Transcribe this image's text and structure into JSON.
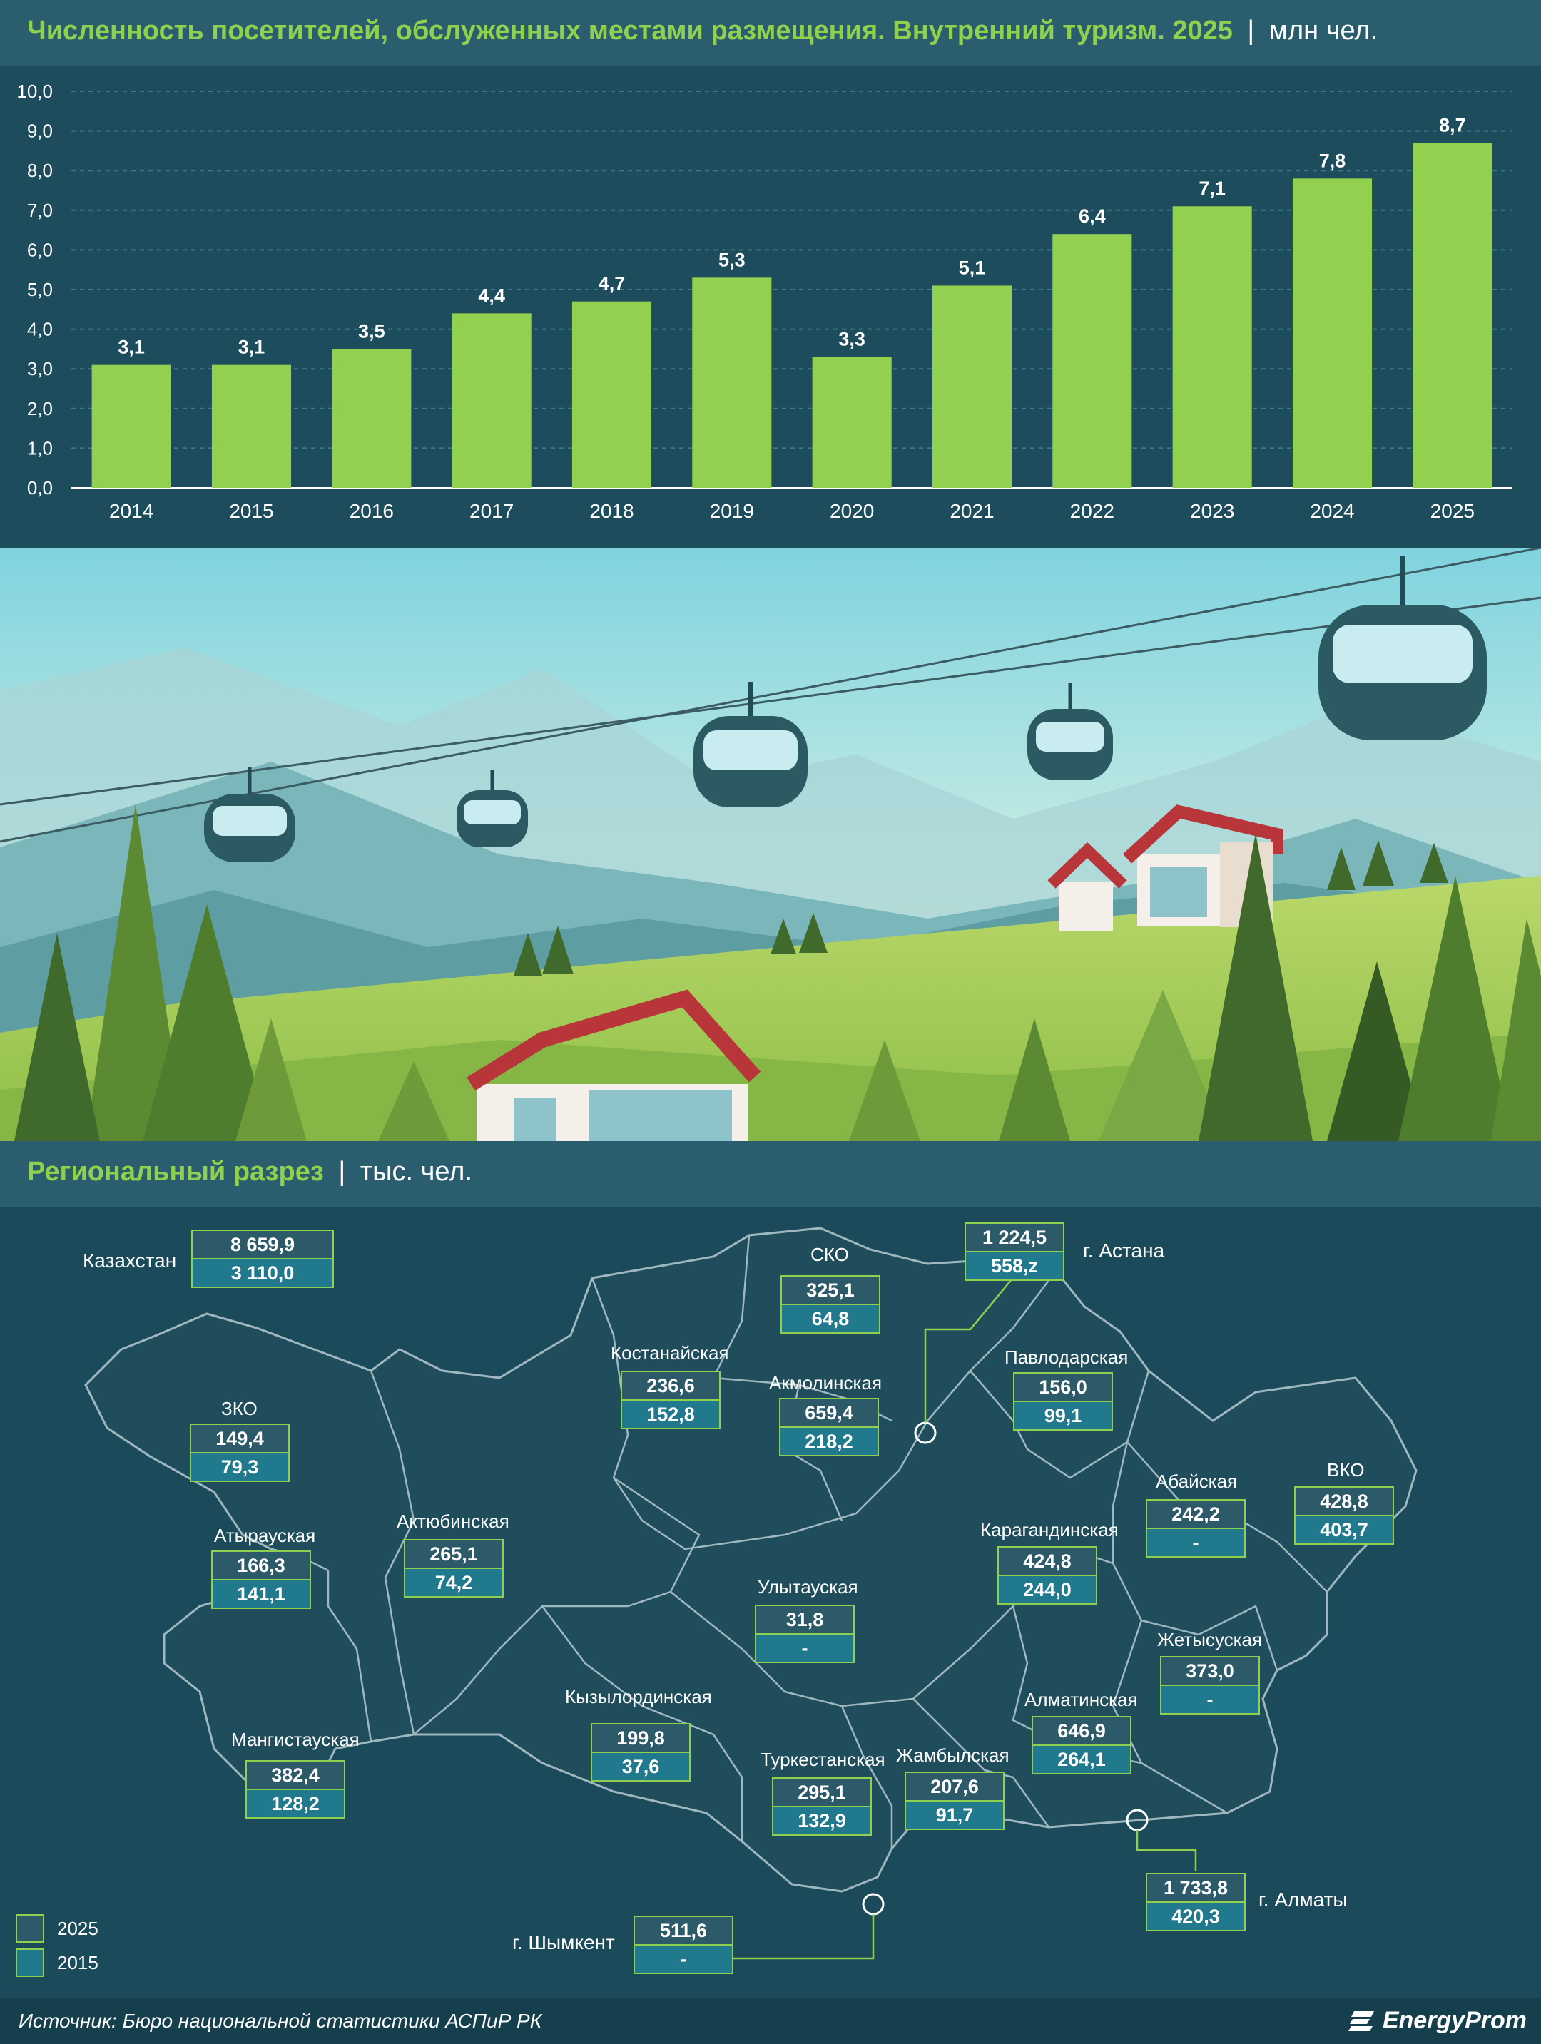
{
  "header": {
    "title": "Численность посетителей, обслуженных местами размещения. Внутренний туризм. 2025",
    "separator": "|",
    "unit": "млн чел."
  },
  "chart_data": {
    "type": "bar",
    "categories": [
      "2014",
      "2015",
      "2016",
      "2017",
      "2018",
      "2019",
      "2020",
      "2021",
      "2022",
      "2023",
      "2024",
      "2025"
    ],
    "values": [
      3.1,
      3.1,
      3.5,
      4.4,
      4.7,
      5.3,
      3.3,
      5.1,
      6.4,
      7.1,
      7.8,
      8.7
    ],
    "value_labels": [
      "3,1",
      "3,1",
      "3,5",
      "4,4",
      "4,7",
      "5,3",
      "3,3",
      "5,1",
      "6,4",
      "7,1",
      "7,8",
      "8,7"
    ],
    "yticks": [
      "0,0",
      "1,0",
      "2,0",
      "3,0",
      "4,0",
      "5,0",
      "6,0",
      "7,0",
      "8,0",
      "9,0",
      "10,0"
    ],
    "ylim": [
      0,
      10
    ],
    "grid": true,
    "bar_color": "#92d050"
  },
  "regional": {
    "title": "Региональный разрез",
    "separator": "|",
    "unit": "тыс. чел.",
    "legend": [
      {
        "label": "2025",
        "color": "#2c5a68"
      },
      {
        "label": "2015",
        "color": "#21798e"
      }
    ],
    "kazakhstan": {
      "name": "Казахстан",
      "v2025": "8 659,9",
      "v2015": "3 110,0"
    },
    "regions": {
      "sko": {
        "name": "СКО",
        "v2025": "325,1",
        "v2015": "64,8"
      },
      "astana": {
        "name": "г. Астана",
        "v2025": "1 224,5",
        "v2015": "558,z"
      },
      "kostanay": {
        "name": "Костанайская",
        "v2025": "236,6",
        "v2015": "152,8"
      },
      "akmola": {
        "name": "Акмолинская",
        "v2025": "659,4",
        "v2015": "218,2"
      },
      "pavlodar": {
        "name": "Павлодарская",
        "v2025": "156,0",
        "v2015": "99,1"
      },
      "zko": {
        "name": "ЗКО",
        "v2025": "149,4",
        "v2015": "79,3"
      },
      "abay": {
        "name": "Абайская",
        "v2025": "242,2",
        "v2015": "-"
      },
      "vko": {
        "name": "ВКО",
        "v2025": "428,8",
        "v2015": "403,7"
      },
      "atyrau": {
        "name": "Атырауская",
        "v2025": "166,3",
        "v2015": "141,1"
      },
      "aktobe": {
        "name": "Актюбинская",
        "v2025": "265,1",
        "v2015": "74,2"
      },
      "karaganda": {
        "name": "Карагандинская",
        "v2025": "424,8",
        "v2015": "244,0"
      },
      "ulytau": {
        "name": "Улытауская",
        "v2025": "31,8",
        "v2015": "-"
      },
      "zhetysu": {
        "name": "Жетысуская",
        "v2025": "373,0",
        "v2015": "-"
      },
      "kyzylorda": {
        "name": "Кызылординская",
        "v2025": "199,8",
        "v2015": "37,6"
      },
      "almaty_reg": {
        "name": "Алматинская",
        "v2025": "646,9",
        "v2015": "264,1"
      },
      "mangystau": {
        "name": "Мангистауская",
        "v2025": "382,4",
        "v2015": "128,2"
      },
      "turkestan": {
        "name": "Туркестанская",
        "v2025": "295,1",
        "v2015": "132,9"
      },
      "zhambyl": {
        "name": "Жамбылская",
        "v2025": "207,6",
        "v2015": "91,7"
      },
      "almaty_city": {
        "name": "г. Алматы",
        "v2025": "1 733,8",
        "v2015": "420,3"
      },
      "shymkent": {
        "name": "г. Шымкент",
        "v2025": "511,6",
        "v2015": "-"
      }
    }
  },
  "footer": {
    "source": "Источник: Бюро национальной статистики АСПиР РК",
    "brand": "EnergyProm"
  }
}
